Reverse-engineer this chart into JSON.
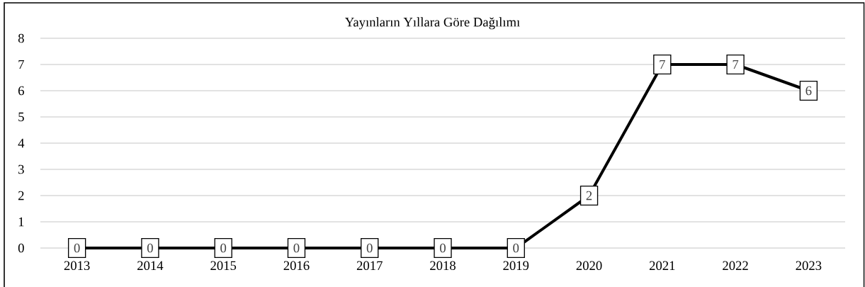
{
  "chart_data": {
    "type": "line",
    "title": "Yayınların Yıllara Göre Dağılımı",
    "categories": [
      "2013",
      "2014",
      "2015",
      "2016",
      "2017",
      "2018",
      "2019",
      "2020",
      "2021",
      "2022",
      "2023"
    ],
    "values": [
      0,
      0,
      0,
      0,
      0,
      0,
      0,
      2,
      7,
      7,
      6
    ],
    "color": "#000000",
    "ylim": [
      0,
      8
    ],
    "yticks": [
      0,
      1,
      2,
      3,
      4,
      5,
      6,
      7,
      8
    ],
    "grid": "y",
    "data_labels": true,
    "marker": "square",
    "line_style": "solid"
  }
}
